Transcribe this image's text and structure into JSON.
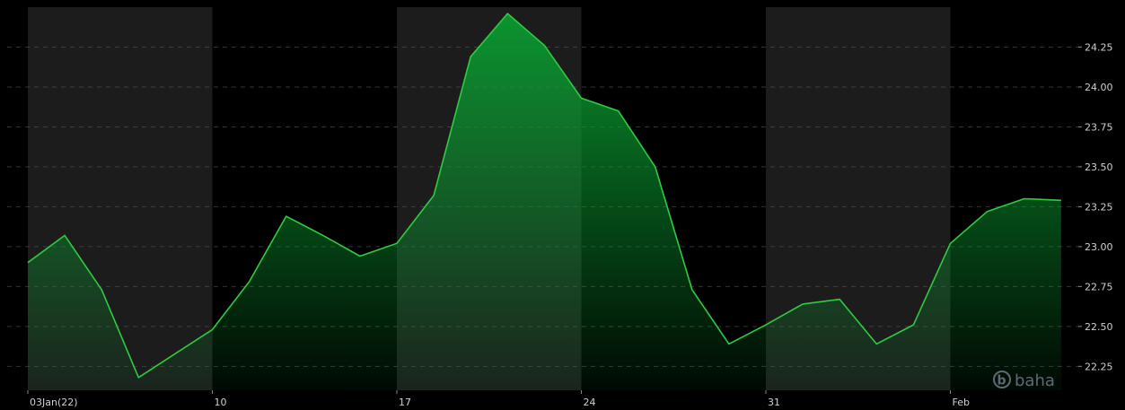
{
  "chart_data": {
    "type": "area",
    "x": [
      "2022-01-03",
      "2022-01-04",
      "2022-01-05",
      "2022-01-06",
      "2022-01-07",
      "2022-01-10",
      "2022-01-11",
      "2022-01-12",
      "2022-01-13",
      "2022-01-14",
      "2022-01-17",
      "2022-01-18",
      "2022-01-19",
      "2022-01-20",
      "2022-01-21",
      "2022-01-24",
      "2022-01-25",
      "2022-01-26",
      "2022-01-27",
      "2022-01-28",
      "2022-01-31",
      "2022-02-01",
      "2022-02-02",
      "2022-02-03",
      "2022-02-04",
      "2022-02-07",
      "2022-02-08",
      "2022-02-09",
      "2022-02-10"
    ],
    "series": [
      {
        "values": [
          22.9,
          23.07,
          22.73,
          22.18,
          22.33,
          22.48,
          22.78,
          23.19,
          23.07,
          22.94,
          23.02,
          23.32,
          24.19,
          24.46,
          24.26,
          23.93,
          23.85,
          23.5,
          22.73,
          22.39,
          22.51,
          22.64,
          22.67,
          22.39,
          22.51,
          23.02,
          23.22,
          23.3,
          23.29
        ]
      }
    ],
    "x_tick_labels": [
      {
        "x": "2022-01-03",
        "label": "03Jan(22)"
      },
      {
        "x": "2022-01-10",
        "label": "10"
      },
      {
        "x": "2022-01-17",
        "label": "17"
      },
      {
        "x": "2022-01-24",
        "label": "24"
      },
      {
        "x": "2022-01-31",
        "label": "31"
      },
      {
        "x": "2022-02-07",
        "label": "Feb"
      }
    ],
    "y_ticks": [
      22.25,
      22.5,
      22.75,
      23.0,
      23.25,
      23.5,
      23.75,
      24.0,
      24.25
    ],
    "y_tick_labels": [
      "22.25",
      "22.50",
      "22.75",
      "23.00",
      "23.25",
      "23.50",
      "23.75",
      "24.00",
      "24.25"
    ],
    "ylim": [
      22.1,
      24.5
    ],
    "y_axis_side": "right",
    "grid": true,
    "week_shading": "alternating",
    "colors": {
      "line": "#2ecc40",
      "area_top": "#0a9a30",
      "band_light": "#1c1c1c",
      "background": "#000000",
      "grid": "#555555"
    },
    "watermark": "baha"
  }
}
